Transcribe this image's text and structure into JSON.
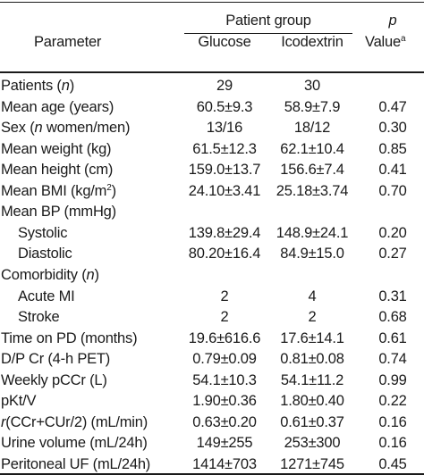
{
  "header": {
    "group_label": "Patient group",
    "parameter_label": "Parameter",
    "glucose_label": "Glucose",
    "icodextrin_label": "Icodextrin",
    "p_label": "p",
    "value_label": "Value",
    "value_sup": "a"
  },
  "rows": [
    {
      "pre": "Patients (",
      "em": "n",
      "post": ")",
      "sup": "",
      "after": "",
      "indent": false,
      "glucose": "29",
      "icodextrin": "30",
      "p": ""
    },
    {
      "pre": "Mean age (years)",
      "em": "",
      "post": "",
      "sup": "",
      "after": "",
      "indent": false,
      "glucose": "60.5±9.3",
      "icodextrin": "58.9±7.9",
      "p": "0.47"
    },
    {
      "pre": "Sex (",
      "em": "n",
      "post": " women/men)",
      "sup": "",
      "after": "",
      "indent": false,
      "glucose": "13/16",
      "icodextrin": "18/12",
      "p": "0.30"
    },
    {
      "pre": "Mean weight (kg)",
      "em": "",
      "post": "",
      "sup": "",
      "after": "",
      "indent": false,
      "glucose": "61.5±12.3",
      "icodextrin": "62.1±10.4",
      "p": "0.85"
    },
    {
      "pre": "Mean height (cm)",
      "em": "",
      "post": "",
      "sup": "",
      "after": "",
      "indent": false,
      "glucose": "159.0±13.7",
      "icodextrin": "156.6±7.4",
      "p": "0.41"
    },
    {
      "pre": "Mean BMI (kg/m",
      "em": "",
      "post": "",
      "sup": "2",
      "after": ")",
      "indent": false,
      "glucose": "24.10±3.41",
      "icodextrin": "25.18±3.74",
      "p": "0.70"
    },
    {
      "pre": "Mean BP (mmHg)",
      "em": "",
      "post": "",
      "sup": "",
      "after": "",
      "indent": false,
      "glucose": "",
      "icodextrin": "",
      "p": ""
    },
    {
      "pre": "Systolic",
      "em": "",
      "post": "",
      "sup": "",
      "after": "",
      "indent": true,
      "glucose": "139.8±29.4",
      "icodextrin": "148.9±24.1",
      "p": "0.20"
    },
    {
      "pre": "Diastolic",
      "em": "",
      "post": "",
      "sup": "",
      "after": "",
      "indent": true,
      "glucose": "80.20±16.4",
      "icodextrin": "84.9±15.0",
      "p": "0.27"
    },
    {
      "pre": "Comorbidity (",
      "em": "n",
      "post": ")",
      "sup": "",
      "after": "",
      "indent": false,
      "glucose": "",
      "icodextrin": "",
      "p": ""
    },
    {
      "pre": "Acute MI",
      "em": "",
      "post": "",
      "sup": "",
      "after": "",
      "indent": true,
      "glucose": "2",
      "icodextrin": "4",
      "p": "0.31"
    },
    {
      "pre": "Stroke",
      "em": "",
      "post": "",
      "sup": "",
      "after": "",
      "indent": true,
      "glucose": "2",
      "icodextrin": "2",
      "p": "0.68"
    },
    {
      "pre": "Time on PD (months)",
      "em": "",
      "post": "",
      "sup": "",
      "after": "",
      "indent": false,
      "glucose": "19.6±616.6",
      "icodextrin": "17.6±14.1",
      "p": "0.61"
    },
    {
      "pre": "D/P Cr (4-h PET)",
      "em": "",
      "post": "",
      "sup": "",
      "after": "",
      "indent": false,
      "glucose": "0.79±0.09",
      "icodextrin": "0.81±0.08",
      "p": "0.74"
    },
    {
      "pre": "Weekly pCCr (L)",
      "em": "",
      "post": "",
      "sup": "",
      "after": "",
      "indent": false,
      "glucose": "54.1±10.3",
      "icodextrin": "54.1±11.2",
      "p": "0.99"
    },
    {
      "pre": "pKt/V",
      "em": "",
      "post": "",
      "sup": "",
      "after": "",
      "indent": false,
      "glucose": "1.90±0.36",
      "icodextrin": "1.80±0.40",
      "p": "0.22"
    },
    {
      "pre": "",
      "em": "r",
      "post": "(CCr+CUr/2) (mL/min)",
      "sup": "",
      "after": "",
      "indent": false,
      "glucose": "0.63±0.20",
      "icodextrin": "0.61±0.37",
      "p": "0.16"
    },
    {
      "pre": "Urine volume (mL/24h)",
      "em": "",
      "post": "",
      "sup": "",
      "after": "",
      "indent": false,
      "glucose": "149±255",
      "icodextrin": "253±300",
      "p": "0.16"
    },
    {
      "pre": "Peritoneal UF (mL/24h)",
      "em": "",
      "post": "",
      "sup": "",
      "after": "",
      "indent": false,
      "glucose": "1414±703",
      "icodextrin": "1271±745",
      "p": "0.45"
    }
  ]
}
